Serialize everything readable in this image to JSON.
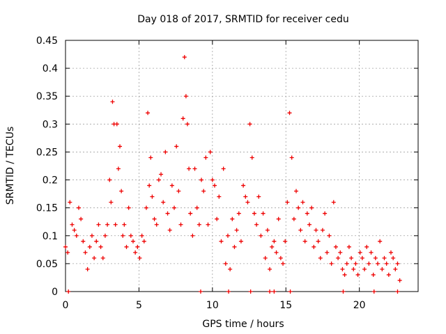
{
  "chart_data": {
    "type": "scatter",
    "title": "Day 018 of 2017, SRMTID for receiver cedu",
    "xlabel": "GPS time / hours",
    "ylabel": "SRMTID / TECUs",
    "xlim": [
      0,
      24
    ],
    "ylim": [
      0,
      0.45
    ],
    "xticks": [
      0,
      5,
      10,
      15,
      20
    ],
    "yticks": [
      0,
      0.05,
      0.1,
      0.15,
      0.2,
      0.25,
      0.3,
      0.35,
      0.4,
      0.45
    ],
    "xtick_labels": [
      "0",
      "5",
      "10",
      "15",
      "20"
    ],
    "ytick_labels": [
      "0",
      "0.05",
      "0.1",
      "0.15",
      "0.2",
      "0.25",
      "0.3",
      "0.35",
      "0.4",
      "0.45"
    ],
    "grid": true,
    "marker": "+",
    "color": "#ee0000",
    "series": [
      {
        "name": "SRMTID",
        "x": [
          0.0,
          0.15,
          0.3,
          0.45,
          0.6,
          0.75,
          0.9,
          1.05,
          1.2,
          1.35,
          1.5,
          1.65,
          1.8,
          1.95,
          2.1,
          2.25,
          2.4,
          2.55,
          2.7,
          2.85,
          3.0,
          3.1,
          3.2,
          3.3,
          3.4,
          3.5,
          3.6,
          3.7,
          3.8,
          3.9,
          4.0,
          4.15,
          4.3,
          4.45,
          4.6,
          4.75,
          4.9,
          5.05,
          5.2,
          5.35,
          5.5,
          5.6,
          5.7,
          5.8,
          5.9,
          6.05,
          6.2,
          6.35,
          6.5,
          6.65,
          6.8,
          6.95,
          7.1,
          7.25,
          7.4,
          7.55,
          7.7,
          7.85,
          8.0,
          8.1,
          8.2,
          8.3,
          8.4,
          8.5,
          8.65,
          8.8,
          8.95,
          9.1,
          9.25,
          9.4,
          9.55,
          9.7,
          9.85,
          10.0,
          10.15,
          10.3,
          10.45,
          10.6,
          10.75,
          10.9,
          11.05,
          11.2,
          11.35,
          11.5,
          11.65,
          11.8,
          11.95,
          12.1,
          12.25,
          12.4,
          12.55,
          12.7,
          12.85,
          13.0,
          13.15,
          13.3,
          13.45,
          13.6,
          13.75,
          13.9,
          14.05,
          14.2,
          14.35,
          14.5,
          14.65,
          14.8,
          14.95,
          15.1,
          15.25,
          15.4,
          15.55,
          15.7,
          15.85,
          16.0,
          16.15,
          16.3,
          16.45,
          16.6,
          16.75,
          16.9,
          17.05,
          17.2,
          17.35,
          17.5,
          17.65,
          17.8,
          17.95,
          18.1,
          18.25,
          18.4,
          18.55,
          18.7,
          18.85,
          19.0,
          19.15,
          19.3,
          19.45,
          19.6,
          19.75,
          19.9,
          20.05,
          20.2,
          20.35,
          20.5,
          20.65,
          20.8,
          20.95,
          21.1,
          21.25,
          21.4,
          21.55,
          21.7,
          21.85,
          22.0,
          22.15,
          22.3,
          22.45,
          22.6,
          22.75,
          0.2,
          9.2,
          11.1,
          12.6,
          13.9,
          14.2,
          15.3,
          18.9,
          21.0,
          22.6
        ],
        "y": [
          0.08,
          0.07,
          0.16,
          0.12,
          0.11,
          0.1,
          0.15,
          0.13,
          0.09,
          0.07,
          0.04,
          0.08,
          0.1,
          0.06,
          0.09,
          0.12,
          0.08,
          0.06,
          0.1,
          0.12,
          0.2,
          0.16,
          0.34,
          0.3,
          0.12,
          0.3,
          0.22,
          0.26,
          0.18,
          0.1,
          0.12,
          0.08,
          0.15,
          0.1,
          0.09,
          0.07,
          0.08,
          0.06,
          0.1,
          0.09,
          0.15,
          0.32,
          0.19,
          0.24,
          0.17,
          0.13,
          0.12,
          0.2,
          0.21,
          0.16,
          0.25,
          0.14,
          0.11,
          0.19,
          0.15,
          0.26,
          0.18,
          0.12,
          0.31,
          0.42,
          0.35,
          0.3,
          0.22,
          0.14,
          0.1,
          0.22,
          0.15,
          0.12,
          0.2,
          0.18,
          0.24,
          0.12,
          0.25,
          0.2,
          0.19,
          0.13,
          0.17,
          0.09,
          0.22,
          0.05,
          0.1,
          0.04,
          0.13,
          0.08,
          0.11,
          0.14,
          0.09,
          0.19,
          0.17,
          0.16,
          0.3,
          0.24,
          0.14,
          0.12,
          0.17,
          0.1,
          0.14,
          0.06,
          0.11,
          0.04,
          0.08,
          0.09,
          0.07,
          0.13,
          0.06,
          0.05,
          0.09,
          0.16,
          0.32,
          0.24,
          0.13,
          0.18,
          0.15,
          0.11,
          0.16,
          0.09,
          0.14,
          0.12,
          0.15,
          0.08,
          0.11,
          0.09,
          0.06,
          0.11,
          0.14,
          0.07,
          0.1,
          0.05,
          0.16,
          0.08,
          0.06,
          0.07,
          0.04,
          0.03,
          0.05,
          0.08,
          0.06,
          0.04,
          0.05,
          0.03,
          0.07,
          0.06,
          0.04,
          0.08,
          0.05,
          0.07,
          0.03,
          0.06,
          0.05,
          0.09,
          0.04,
          0.06,
          0.05,
          0.03,
          0.07,
          0.06,
          0.04,
          0.05,
          0.02,
          0.0,
          0.0,
          0.0,
          0.0,
          0.0,
          0.0,
          0.0,
          0.0,
          0.0,
          0.0
        ]
      }
    ]
  }
}
